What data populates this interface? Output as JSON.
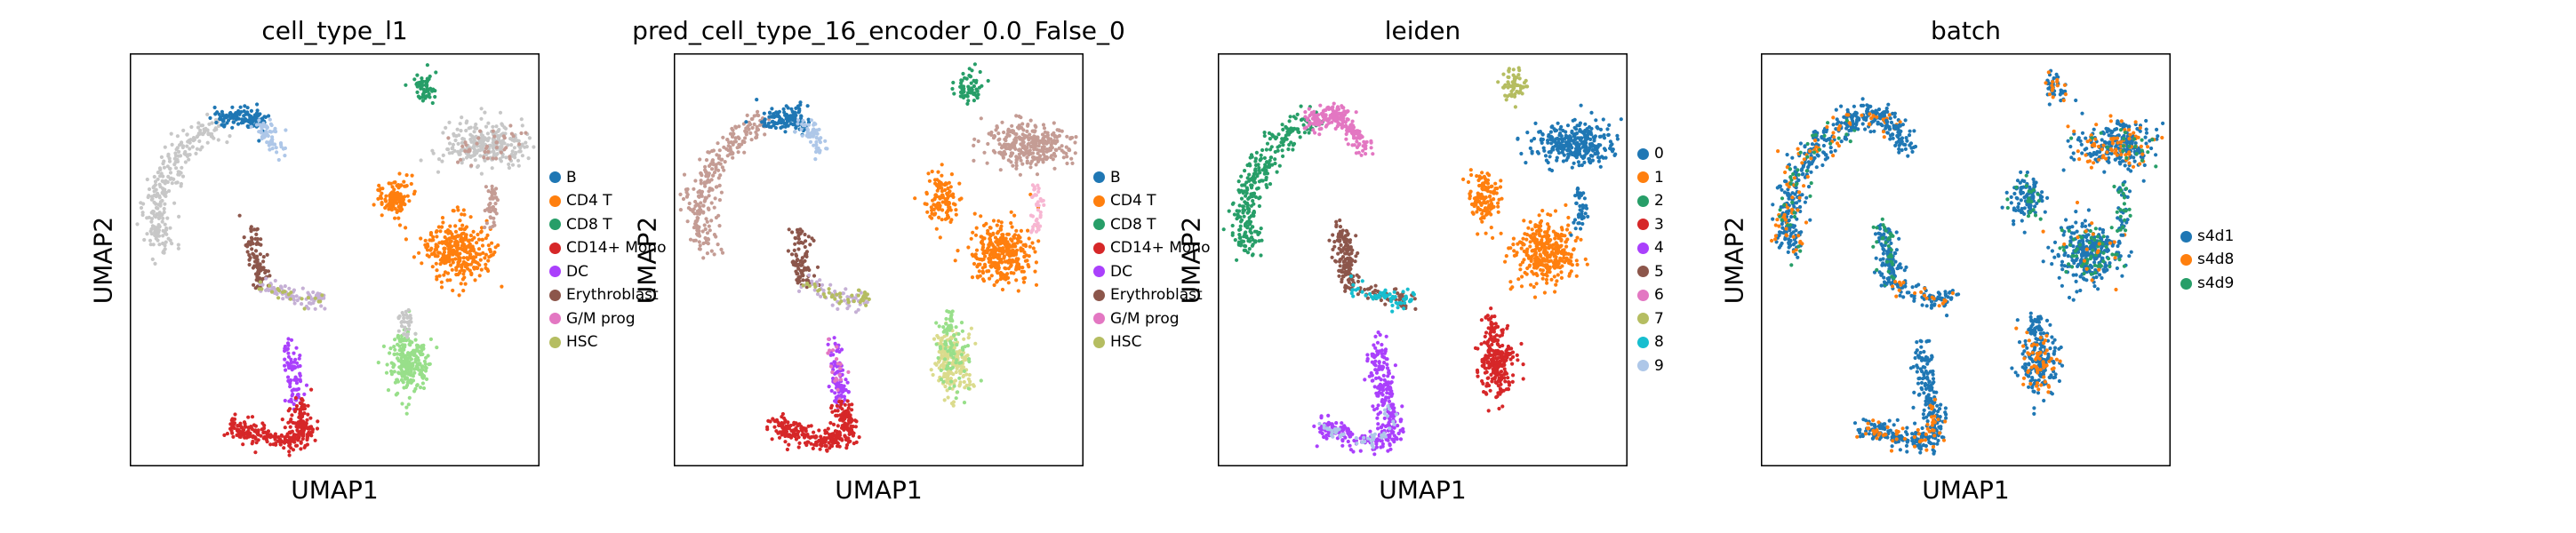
{
  "chart_data": [
    {
      "type": "scatter",
      "title": "cell_type_l1",
      "xlabel": "UMAP1",
      "ylabel": "UMAP2",
      "legend_position": "right",
      "grid": false,
      "series": [
        {
          "name": "B",
          "color": "#1f77b4"
        },
        {
          "name": "CD4 T",
          "color": "#ff7f0e"
        },
        {
          "name": "CD8 T",
          "color": "#279e68"
        },
        {
          "name": "CD14+ Mono",
          "color": "#d62728"
        },
        {
          "name": "DC",
          "color": "#aa40fc"
        },
        {
          "name": "Erythroblast",
          "color": "#8c564b"
        },
        {
          "name": "G/M prog",
          "color": "#e377c2"
        },
        {
          "name": "HSC",
          "color": "#b5bd61"
        }
      ],
      "unlabeled_colors": [
        "#c7c7c7",
        "#aec7e8",
        "#98df8a",
        "#c5b0d5",
        "#c49c94",
        "#f7b6d2",
        "#dbdb8d",
        "#9edae5",
        "#ffbb78",
        "#ff9896",
        "#17becf"
      ]
    },
    {
      "type": "scatter",
      "title": "pred_cell_type_16_encoder_0.0_False_0",
      "xlabel": "UMAP1",
      "ylabel": "UMAP2",
      "legend_position": "right",
      "grid": false,
      "series": [
        {
          "name": "B",
          "color": "#1f77b4"
        },
        {
          "name": "CD4 T",
          "color": "#ff7f0e"
        },
        {
          "name": "CD8 T",
          "color": "#279e68"
        },
        {
          "name": "CD14+ Mono",
          "color": "#d62728"
        },
        {
          "name": "DC",
          "color": "#aa40fc"
        },
        {
          "name": "Erythroblast",
          "color": "#8c564b"
        },
        {
          "name": "G/M prog",
          "color": "#e377c2"
        },
        {
          "name": "HSC",
          "color": "#b5bd61"
        }
      ],
      "unlabeled_colors": [
        "#c49c94",
        "#aec7e8",
        "#98df8a",
        "#c5b0d5",
        "#f7b6d2",
        "#dbdb8d",
        "#9edae5",
        "#ffbb78",
        "#ff9896",
        "#17becf",
        "#c7c7c7"
      ]
    },
    {
      "type": "scatter",
      "title": "leiden",
      "xlabel": "UMAP1",
      "ylabel": "UMAP2",
      "legend_position": "right",
      "grid": false,
      "series": [
        {
          "name": "0",
          "color": "#1f77b4"
        },
        {
          "name": "1",
          "color": "#ff7f0e"
        },
        {
          "name": "2",
          "color": "#279e68"
        },
        {
          "name": "3",
          "color": "#d62728"
        },
        {
          "name": "4",
          "color": "#aa40fc"
        },
        {
          "name": "5",
          "color": "#8c564b"
        },
        {
          "name": "6",
          "color": "#e377c2"
        },
        {
          "name": "7",
          "color": "#b5bd61"
        },
        {
          "name": "8",
          "color": "#17becf"
        },
        {
          "name": "9",
          "color": "#aec7e8"
        }
      ]
    },
    {
      "type": "scatter",
      "title": "batch",
      "xlabel": "UMAP1",
      "ylabel": "UMAP2",
      "legend_position": "right",
      "grid": false,
      "series": [
        {
          "name": "s4d1",
          "color": "#1f77b4"
        },
        {
          "name": "s4d8",
          "color": "#ff7f0e"
        },
        {
          "name": "s4d9",
          "color": "#279e68"
        }
      ]
    }
  ]
}
